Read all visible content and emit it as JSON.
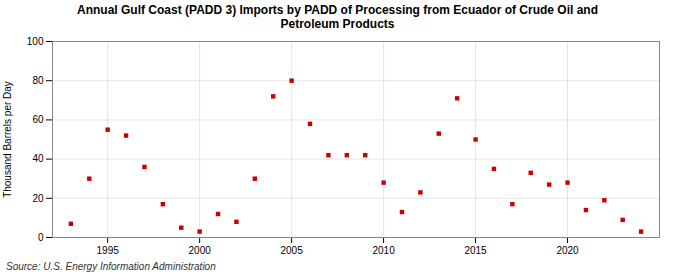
{
  "chart_data": {
    "type": "scatter",
    "title": "Annual Gulf Coast (PADD 3) Imports by PADD of Processing from Ecuador of Crude Oil and\nPetroleum Products",
    "ylabel": "Thousand Barrels per Day",
    "source": "Source: U.S. Energy Information Administration",
    "x": [
      1993,
      1994,
      1995,
      1996,
      1997,
      1998,
      1999,
      2000,
      2001,
      2002,
      2003,
      2004,
      2005,
      2006,
      2007,
      2008,
      2009,
      2010,
      2011,
      2012,
      2013,
      2014,
      2015,
      2016,
      2017,
      2018,
      2019,
      2020,
      2021,
      2022,
      2023,
      2024
    ],
    "values": [
      7,
      30,
      55,
      52,
      36,
      17,
      5,
      3,
      12,
      8,
      30,
      72,
      80,
      58,
      42,
      42,
      42,
      28,
      13,
      23,
      53,
      71,
      50,
      35,
      17,
      33,
      27,
      28,
      14,
      19,
      9,
      3
    ],
    "color": "#cc0000",
    "marker": "square",
    "xlim": [
      1992,
      2025
    ],
    "ylim": [
      0,
      100
    ],
    "xticks": [
      1995,
      2000,
      2005,
      2010,
      2015,
      2020
    ],
    "yticks": [
      0,
      20,
      40,
      60,
      80,
      100
    ],
    "grid": true
  }
}
